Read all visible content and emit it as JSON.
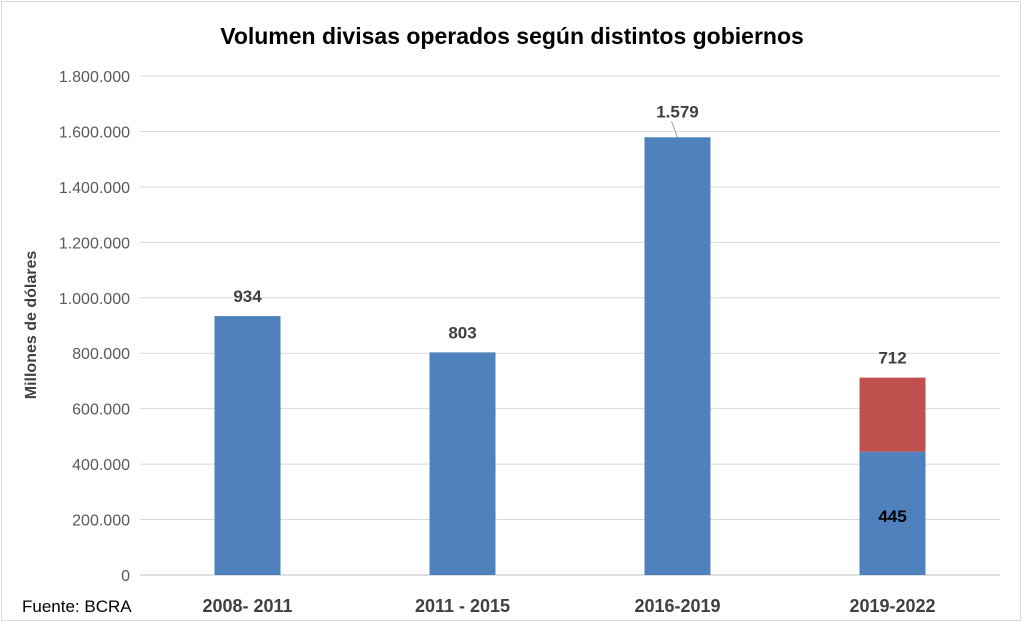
{
  "chart_data": {
    "type": "bar",
    "stacked": true,
    "title": "Volumen divisas operados según distintos gobiernos",
    "ylabel": "Millones de dólares",
    "xlabel": "",
    "categories": [
      "2008- 2011",
      "2011 - 2015",
      "2016-2019",
      "2019-2022"
    ],
    "series": [
      {
        "values": [
          934000,
          803000,
          1579000,
          445000
        ],
        "color": "#4f81bd"
      },
      {
        "values": [
          0,
          0,
          0,
          267000
        ],
        "color": "#c0504d"
      }
    ],
    "data_labels": [
      "934",
      "803",
      "1.579",
      "712"
    ],
    "inner_label": "445",
    "ylim": [
      0,
      1800000
    ],
    "yticks": [
      0,
      200000,
      400000,
      600000,
      800000,
      1000000,
      1200000,
      1400000,
      1600000,
      1800000
    ],
    "ytick_labels": [
      "0",
      "200.000",
      "400.000",
      "600.000",
      "800.000",
      "1.000.000",
      "1.200.000",
      "1.400.000",
      "1.600.000",
      "1.800.000"
    ],
    "grid": true,
    "legend": "none",
    "source": "Fuente: BCRA"
  }
}
